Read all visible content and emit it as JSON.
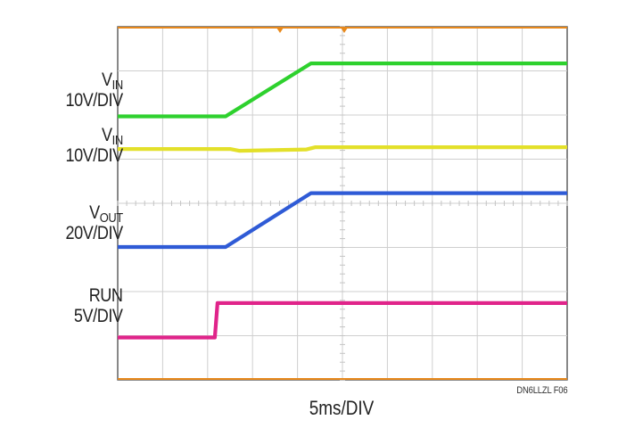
{
  "chart_data": {
    "type": "line",
    "xlabel": "5ms/DIV",
    "x_unit_per_div": 5,
    "x_divisions": 10,
    "x_unit": "ms",
    "y_divisions": 8,
    "grid": true,
    "figure_id": "DN6LLZL F06",
    "channels": [
      {
        "name_main": "V",
        "name_sub": "IN",
        "scale": "10V/DIV",
        "color": "#2ed12e",
        "points": [
          [
            0,
            5.97
          ],
          [
            12,
            5.97
          ],
          [
            21.5,
            7.17
          ],
          [
            50,
            7.17
          ]
        ]
      },
      {
        "name_main": "V",
        "name_sub": "IN",
        "scale": "10V/DIV",
        "color": "#e3e02a",
        "points": [
          [
            0,
            5.23
          ],
          [
            12.5,
            5.23
          ],
          [
            13.5,
            5.19
          ],
          [
            21,
            5.22
          ],
          [
            22,
            5.27
          ],
          [
            50,
            5.27
          ]
        ]
      },
      {
        "name_main": "V",
        "name_sub": "OUT",
        "scale": "20V/DIV",
        "color": "#2f5bd6",
        "points": [
          [
            0,
            3.01
          ],
          [
            12,
            3.01
          ],
          [
            21.5,
            4.23
          ],
          [
            50,
            4.23
          ]
        ]
      },
      {
        "name_main": "RUN",
        "name_sub": "",
        "scale": "5V/DIV",
        "color": "#e0248a",
        "points": [
          [
            0,
            0.96
          ],
          [
            10.8,
            0.96
          ],
          [
            11.1,
            1.74
          ],
          [
            50,
            1.74
          ]
        ]
      }
    ]
  }
}
